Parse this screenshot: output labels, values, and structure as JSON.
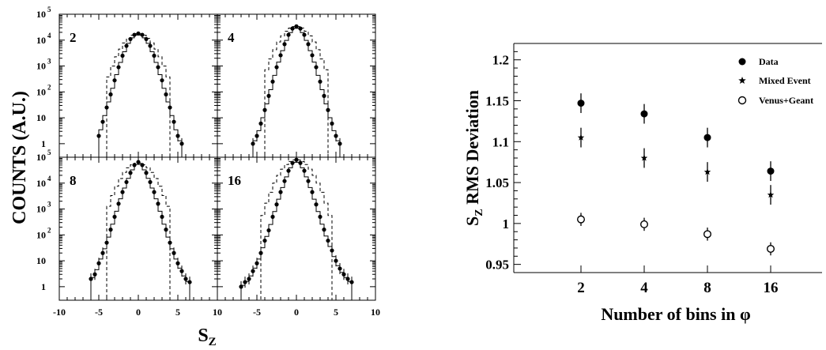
{
  "chart_data": [
    {
      "type": "histogram",
      "layout": "2x2 panels",
      "ylabel": "COUNTS (A.U.)",
      "xlabel": "S",
      "xlabel_subscript": "Z",
      "xlim": [
        -10,
        10
      ],
      "ylim": [
        0.3,
        100000
      ],
      "yscale": "log",
      "x_ticks": [
        -10,
        -5,
        0,
        5,
        10
      ],
      "y_ticks": [
        "1",
        "10",
        "10",
        "10",
        "10",
        "10"
      ],
      "y_tick_exponents": [
        "",
        "",
        "2",
        "3",
        "4",
        "5"
      ],
      "series_styles": {
        "data": "filled circles with error bars",
        "mixed": "solid histogram",
        "venus": "dashed histogram"
      },
      "panels": [
        {
          "label": "2",
          "data_points": {
            "x": [
              -5,
              -4.5,
              -4,
              -3.5,
              -3,
              -2.5,
              -2,
              -1.5,
              -1,
              -0.5,
              0,
              0.5,
              1,
              1.5,
              2,
              2.5,
              3,
              3.5,
              4,
              4.5,
              5,
              5.5
            ],
            "y": [
              2,
              7,
              25,
              80,
              280,
              900,
              2500,
              6000,
              11000,
              16000,
              18000,
              16000,
              11000,
              6000,
              2500,
              900,
              280,
              80,
              25,
              7,
              2,
              1
            ]
          },
          "mixed_peak": 18000,
          "venus_range": [
            -4,
            4
          ]
        },
        {
          "label": "4",
          "data_points": {
            "x": [
              -5.5,
              -5,
              -4.5,
              -4,
              -3.5,
              -3,
              -2.5,
              -2,
              -1.5,
              -1,
              -0.5,
              0,
              0.5,
              1,
              1.5,
              2,
              2.5,
              3,
              3.5,
              4,
              4.5,
              5,
              5.5
            ],
            "y": [
              1,
              2,
              6,
              20,
              70,
              250,
              900,
              2600,
              7000,
              16000,
              28000,
              34000,
              28000,
              16000,
              7000,
              2600,
              900,
              250,
              70,
              20,
              6,
              2,
              1
            ]
          },
          "mixed_peak": 34000,
          "venus_range": [
            -4,
            4
          ]
        },
        {
          "label": "8",
          "data_points": {
            "x": [
              -6,
              -5.5,
              -5,
              -4.5,
              -4,
              -3.5,
              -3,
              -2.5,
              -2,
              -1.5,
              -1,
              -0.5,
              0,
              0.5,
              1,
              1.5,
              2,
              2.5,
              3,
              3.5,
              4,
              4.5,
              5,
              5.5,
              6,
              6.5
            ],
            "y": [
              2,
              3,
              8,
              20,
              50,
              160,
              500,
              1600,
              4500,
              11000,
              25000,
              50000,
              65000,
              50000,
              25000,
              11000,
              4500,
              1600,
              500,
              160,
              50,
              20,
              8,
              4,
              2,
              1.5
            ]
          },
          "mixed_peak": 60000,
          "venus_range": [
            -4,
            4
          ]
        },
        {
          "label": "16",
          "data_points": {
            "x": [
              -7,
              -6.5,
              -6,
              -5.5,
              -5,
              -4.5,
              -4,
              -3.5,
              -3,
              -2.5,
              -2,
              -1.5,
              -1,
              -0.5,
              0,
              0.5,
              1,
              1.5,
              2,
              2.5,
              3,
              3.5,
              4,
              4.5,
              5,
              5.5,
              6,
              6.5,
              7
            ],
            "y": [
              1,
              1.5,
              2,
              4,
              8,
              20,
              60,
              150,
              500,
              1500,
              4500,
              12000,
              30000,
              60000,
              80000,
              60000,
              30000,
              12000,
              4500,
              1500,
              500,
              160,
              60,
              25,
              10,
              5,
              3,
              2,
              1.5
            ]
          },
          "mixed_peak": 80000,
          "venus_range": [
            -4.5,
            4.5
          ]
        }
      ]
    },
    {
      "type": "scatter",
      "xlabel": "Number of bins in φ",
      "ylabel": "S",
      "ylabel_subscript": "Z",
      "ylabel_suffix": " RMS Deviation",
      "categories": [
        "2",
        "4",
        "8",
        "16"
      ],
      "ylim": [
        0.94,
        1.22
      ],
      "y_ticks": [
        "0.95",
        "1",
        "1.05",
        "1.1",
        "1.15",
        "1.2"
      ],
      "legend_position": "top-right",
      "series": [
        {
          "name": "Data",
          "marker": "filled-circle",
          "values": [
            1.147,
            1.134,
            1.105,
            1.064
          ],
          "errors": [
            0.012,
            0.012,
            0.012,
            0.012
          ]
        },
        {
          "name": "Mixed Event",
          "marker": "star",
          "values": [
            1.105,
            1.08,
            1.063,
            1.035
          ],
          "errors": [
            0.012,
            0.012,
            0.012,
            0.012
          ]
        },
        {
          "name": "Venus+Geant",
          "marker": "open-circle",
          "values": [
            1.005,
            0.999,
            0.987,
            0.969
          ],
          "errors": [
            0.008,
            0.008,
            0.008,
            0.008
          ]
        }
      ]
    }
  ]
}
